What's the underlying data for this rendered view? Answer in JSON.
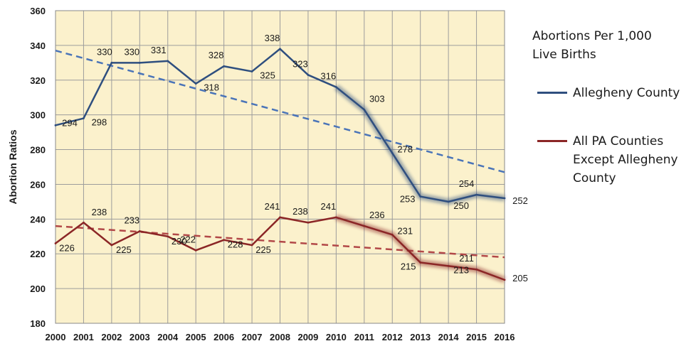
{
  "chart_data": {
    "type": "line",
    "title": "Abortions Per 1,000 Live Births",
    "ylabel": "Abortion Ratios",
    "xlabel": "",
    "ylim": [
      180,
      360
    ],
    "yticks": [
      180,
      200,
      220,
      240,
      260,
      280,
      300,
      320,
      340,
      360
    ],
    "categories": [
      "2000",
      "2001",
      "2002",
      "2003",
      "2004",
      "2005",
      "2006",
      "2007",
      "2008",
      "2009",
      "2010",
      "2011",
      "2012",
      "2013",
      "2014",
      "2015",
      "2016"
    ],
    "series": [
      {
        "name": "Allegheny County",
        "color": "#2f4f7f",
        "values": [
          294,
          298,
          330,
          330,
          331,
          318,
          328,
          325,
          338,
          323,
          316,
          303,
          278,
          253,
          250,
          254,
          252
        ],
        "trendline": [
          337,
          267
        ]
      },
      {
        "name": "All PA Counties Except Allegheny County",
        "color": "#8b2626",
        "values": [
          226,
          238,
          225,
          233,
          230,
          222,
          228,
          225,
          241,
          238,
          241,
          236,
          231,
          215,
          213,
          211,
          205
        ],
        "trendline": [
          236,
          218
        ]
      }
    ],
    "legend_position": "right",
    "grid": true
  },
  "legend": {
    "title_line1": "Abortions Per 1,000",
    "title_line2": "Live Births",
    "item1_label": "Allegheny County",
    "item2_line1": "All PA Counties",
    "item2_line2": "Except Allegheny",
    "item2_line3": "County"
  },
  "colors": {
    "plot_bg": "#fbf1cc",
    "grid": "#9c9c9c",
    "allegheny": "#2f4f7f",
    "allegheny_trend": "#4a74b8",
    "pa": "#8b2626",
    "pa_trend": "#b24848"
  }
}
